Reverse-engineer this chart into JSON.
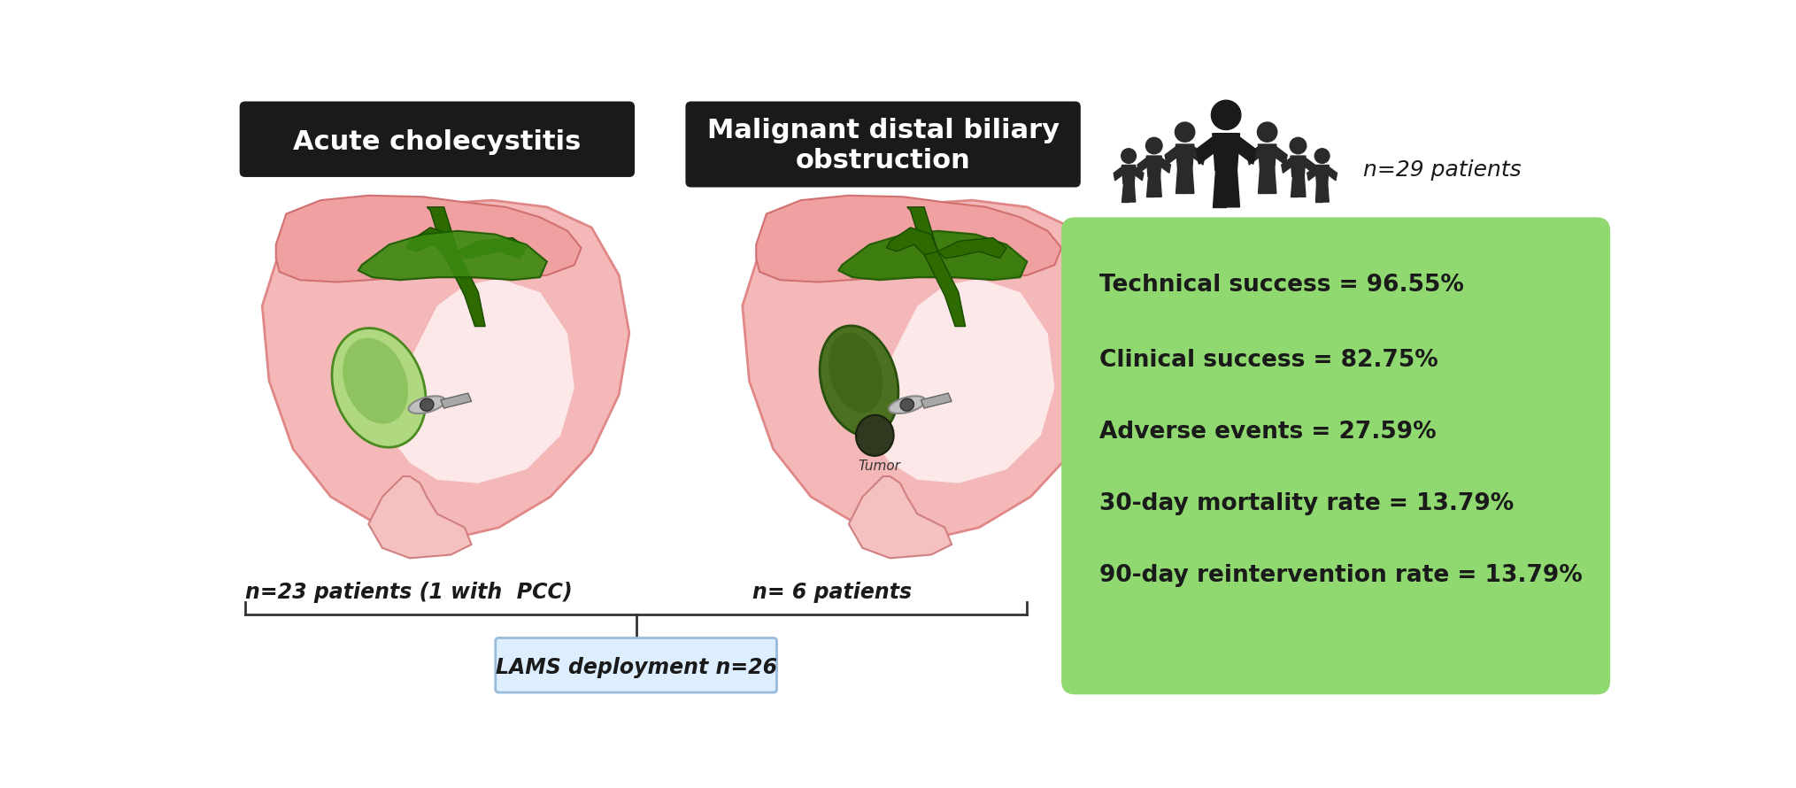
{
  "label_acute": "Acute cholecystitis",
  "label_malignant": "Malignant distal biliary\nobstruction",
  "label_n29": "n=29 patients",
  "label_n23": "n=23 patients (1 with  PCC)",
  "label_n6": "n= 6 patients",
  "label_lams": "LAMS deployment n=26",
  "stats": [
    "Technical success = 96.55%",
    "Clinical success = 82.75%",
    "Adverse events = 27.59%",
    "30-day mortality rate = 13.79%",
    "90-day reintervention rate = 13.79%"
  ],
  "box_bg_color": "#90d870",
  "black_label_bg": "#1a1a1a",
  "white_label_text": "#ffffff",
  "lams_box_facecolor": "#ddeeff",
  "lams_box_edgecolor": "#99bbdd",
  "line_color": "#333333",
  "stat_text_color": "#1a1a1a",
  "pink_stomach": "#f5b8b8",
  "pink_stomach_edge": "#e08888",
  "pink_dark": "#e89090",
  "green_dark": "#2d6a00",
  "green_light": "#90c850",
  "green_mid": "#4a8a20",
  "gray_stent": "#aaaaaa",
  "gray_stent_dark": "#888888",
  "fig_width": 20.29,
  "fig_height": 8.9
}
